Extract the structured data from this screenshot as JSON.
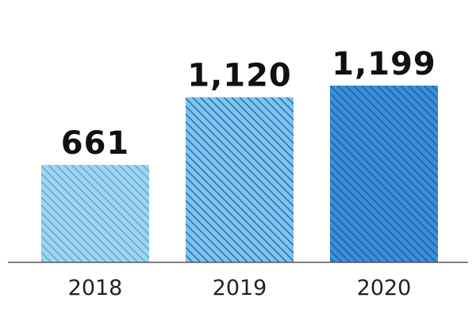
{
  "chart_data": {
    "type": "bar",
    "categories": [
      "2018",
      "2019",
      "2020"
    ],
    "values": [
      661,
      1120,
      1199
    ],
    "value_labels": [
      "661",
      "1,120",
      "1,199"
    ],
    "title": "",
    "xlabel": "",
    "ylabel": "",
    "ylim": [
      0,
      1199
    ],
    "grid": false,
    "legend": "none",
    "colors": {
      "bar_fills": [
        "#9fd4f0",
        "#7ec4ec",
        "#3a8fd6"
      ],
      "bar_hatch": [
        "#5fa6d6",
        "#2a6fb0",
        "#1f5fa8"
      ],
      "axis": "#555555"
    }
  }
}
